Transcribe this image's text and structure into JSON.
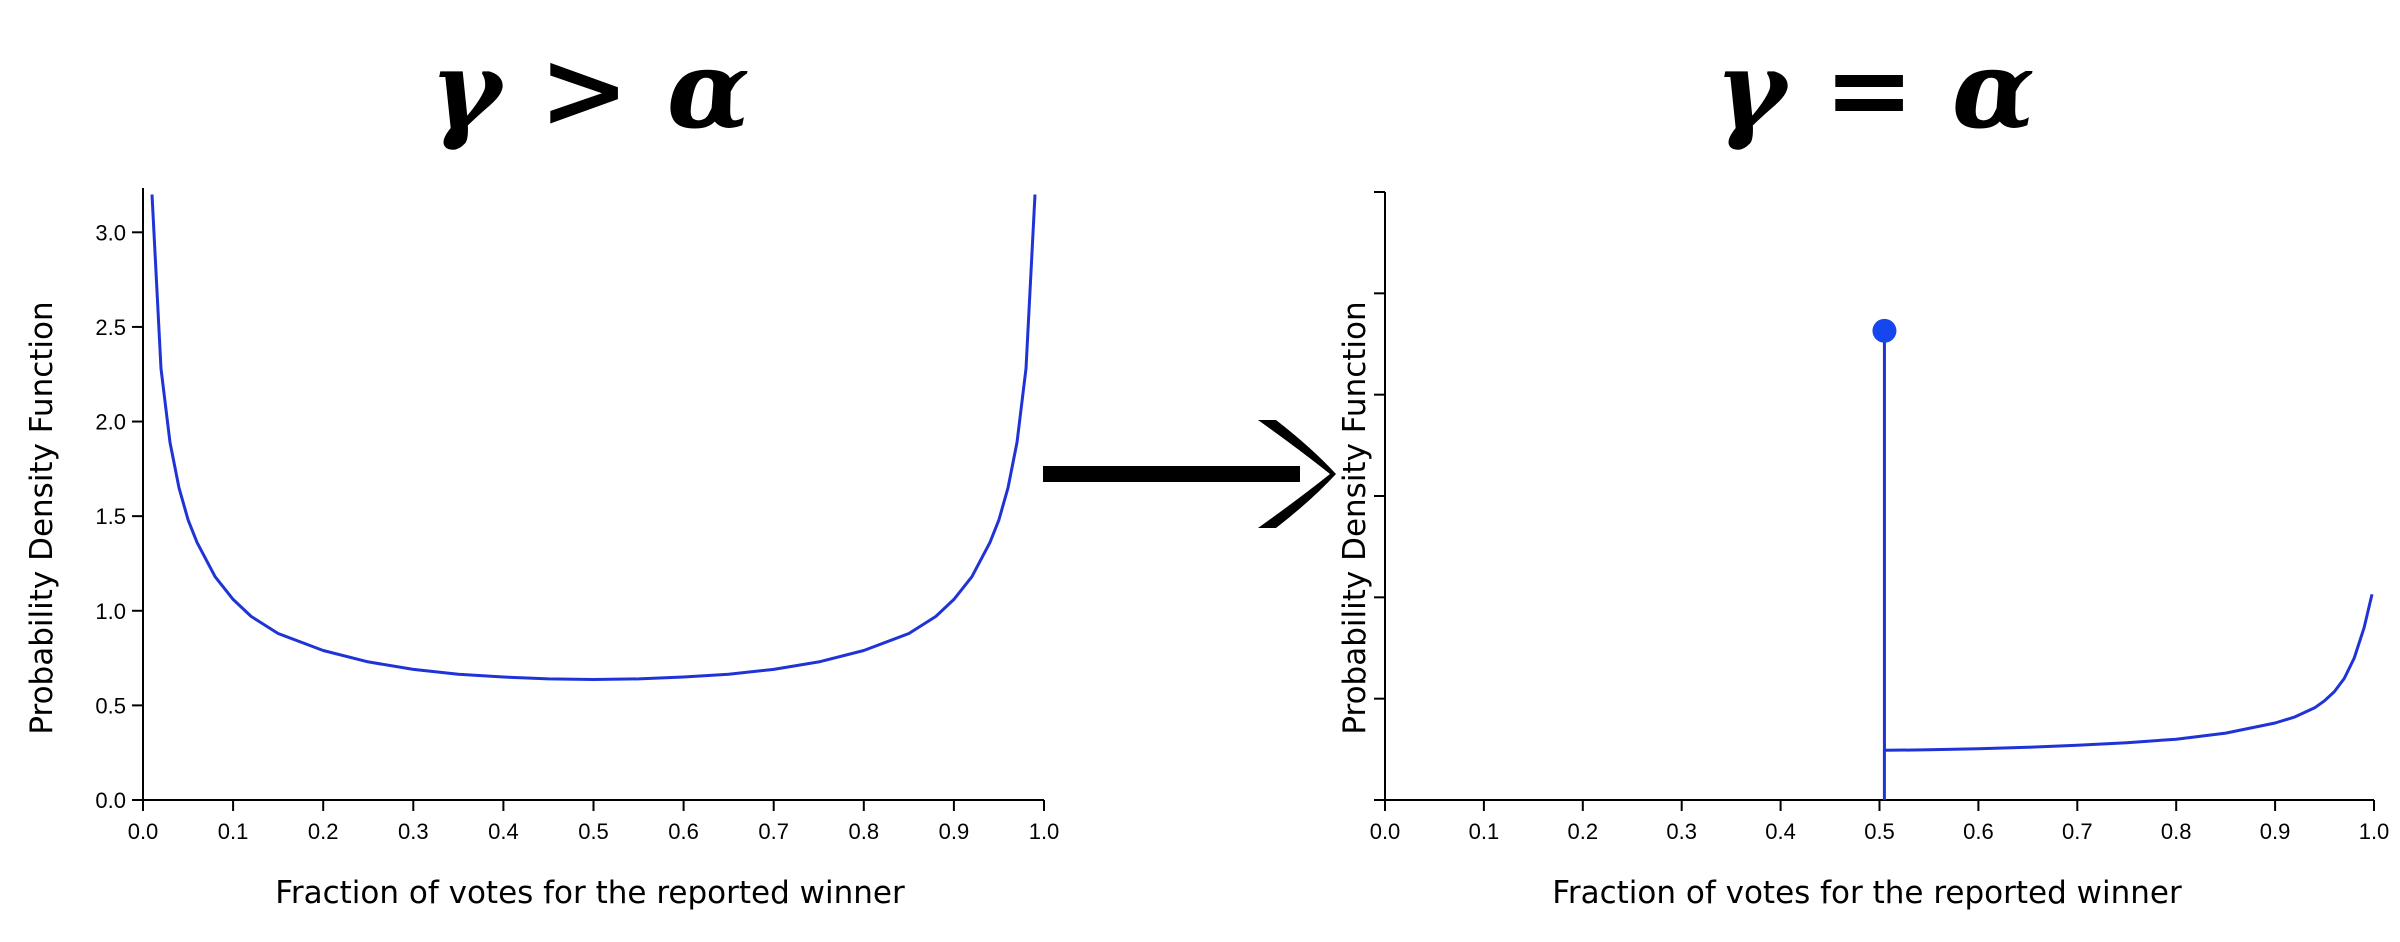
{
  "colors": {
    "curve": "#1f33d6",
    "marker": "#1546ee",
    "arrow": "#000000",
    "axis": "#000000"
  },
  "charts": [
    {
      "title": "γ > α",
      "chart_data": {
        "type": "line",
        "xlabel": "Fraction of votes for the reported winner",
        "ylabel": "Probability Density Function",
        "xlim": [
          0.0,
          1.0
        ],
        "ylim": [
          0.0,
          3.25
        ],
        "xticks": [
          "0.0",
          "0.1",
          "0.2",
          "0.3",
          "0.4",
          "0.5",
          "0.6",
          "0.7",
          "0.8",
          "0.9",
          "1.0"
        ],
        "yticks": [
          "0.0",
          "0.5",
          "1.0",
          "1.5",
          "2.0",
          "2.5",
          "3.0"
        ],
        "grid": false,
        "series": [
          {
            "x": [
              0.01,
              0.02,
              0.03,
              0.04,
              0.05,
              0.06,
              0.08,
              0.1,
              0.12,
              0.15,
              0.2,
              0.25,
              0.3,
              0.35,
              0.4,
              0.45,
              0.5,
              0.55,
              0.6,
              0.65,
              0.7,
              0.75,
              0.8,
              0.85,
              0.88,
              0.9,
              0.92,
              0.94,
              0.95,
              0.96,
              0.97,
              0.98,
              0.99
            ],
            "y": [
              3.2,
              2.28,
              1.89,
              1.65,
              1.48,
              1.36,
              1.18,
              1.06,
              0.97,
              0.88,
              0.79,
              0.73,
              0.69,
              0.665,
              0.65,
              0.64,
              0.637,
              0.64,
              0.65,
              0.665,
              0.69,
              0.73,
              0.79,
              0.88,
              0.97,
              1.06,
              1.18,
              1.36,
              1.48,
              1.65,
              1.89,
              2.28,
              3.2
            ]
          }
        ]
      }
    },
    {
      "title": "γ = α",
      "chart_data": {
        "type": "line",
        "xlabel": "Fraction of votes for the reported winner",
        "ylabel": "Probability Density Function",
        "xlim": [
          0.0,
          1.0
        ],
        "ylim": [
          0.0,
          6.0
        ],
        "xticks": [
          "0.0",
          "0.1",
          "0.2",
          "0.3",
          "0.4",
          "0.5",
          "0.6",
          "0.7",
          "0.8",
          "0.9",
          "1.0"
        ],
        "yticks": [
          "",
          "",
          "",
          "",
          "",
          "",
          ""
        ],
        "grid": false,
        "point_mass": {
          "x": 0.505,
          "y": 4.63
        },
        "series": [
          {
            "x": [
              0.505,
              0.505,
              0.55,
              0.6,
              0.65,
              0.7,
              0.75,
              0.8,
              0.85,
              0.9,
              0.92,
              0.94,
              0.95,
              0.96,
              0.97,
              0.98,
              0.99,
              0.998
            ],
            "y": [
              0.0,
              0.49,
              0.495,
              0.505,
              0.52,
              0.54,
              0.565,
              0.6,
              0.66,
              0.76,
              0.82,
              0.91,
              0.98,
              1.07,
              1.2,
              1.4,
              1.7,
              2.03
            ]
          }
        ]
      }
    }
  ]
}
